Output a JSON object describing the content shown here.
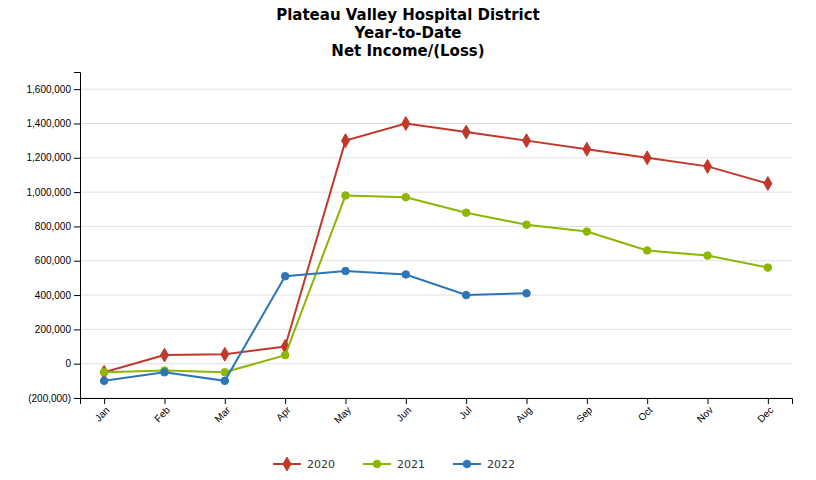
{
  "chart_data": {
    "type": "line",
    "title": "Plateau Valley Hospital District\nYear-to-Date\nNet Income/(Loss)",
    "categories": [
      "Jan",
      "Feb",
      "Mar",
      "Apr",
      "May",
      "Jun",
      "Jul",
      "Aug",
      "Sep",
      "Oct",
      "Nov",
      "Dec"
    ],
    "series": [
      {
        "name": "2020",
        "color": "#C0392B",
        "marker": "diamond",
        "values": [
          -50000,
          50000,
          55000,
          100000,
          1300000,
          1400000,
          1350000,
          1300000,
          1250000,
          1200000,
          1150000,
          1050000
        ]
      },
      {
        "name": "2021",
        "color": "#8DB600",
        "marker": "circle",
        "values": [
          -50000,
          -40000,
          -50000,
          50000,
          980000,
          970000,
          880000,
          810000,
          770000,
          660000,
          630000,
          560000
        ]
      },
      {
        "name": "2022",
        "color": "#2E75B6",
        "marker": "circle",
        "values": [
          -100000,
          -50000,
          -100000,
          510000,
          540000,
          520000,
          400000,
          410000,
          null,
          null,
          null,
          null
        ]
      }
    ],
    "ylim": [
      -200000,
      1700000
    ],
    "yticks": [
      {
        "value": -200000,
        "label": "(200,000)"
      },
      0,
      {
        "value": 200000,
        "label": "200,000"
      },
      {
        "value": 400000,
        "label": "400,000"
      },
      {
        "value": 600000,
        "label": "600,000"
      },
      {
        "value": 800000,
        "label": "800,000"
      },
      {
        "value": 1000000,
        "label": "1,000,000"
      },
      {
        "value": 1200000,
        "label": "1,200,000"
      },
      {
        "value": 1400000,
        "label": "1,400,000"
      },
      {
        "value": 1600000,
        "label": "1,600,000"
      }
    ],
    "grid": true,
    "legend": "bottom"
  }
}
